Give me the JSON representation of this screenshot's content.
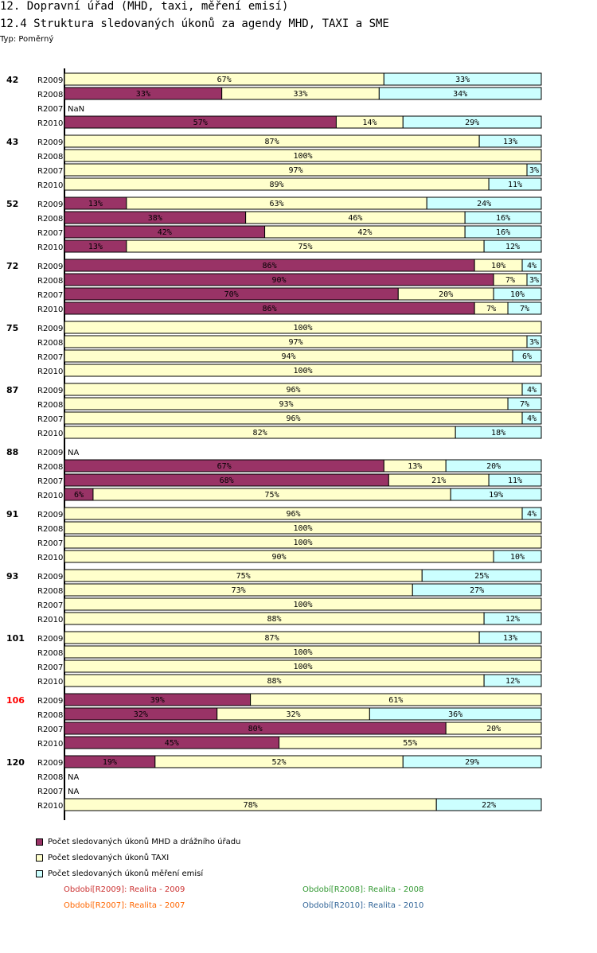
{
  "header": {
    "title": "12. Dopravní úřad (MHD, taxi, měření emisí)",
    "subtitle": "12.4 Struktura sledovaných úkonů za agendy MHD, TAXI a SME",
    "type_label": "Typ: Poměrný"
  },
  "colors": {
    "mhd": "#993366",
    "taxi": "#ffffcc",
    "sme": "#ccffff",
    "highlight_group": "#ff0000"
  },
  "legend": {
    "items": [
      {
        "label": "Počet sledovaných úkonů MHD a drážního úřadu",
        "color": "#993366"
      },
      {
        "label": "Počet sledovaných úkonů TAXI",
        "color": "#ffffcc"
      },
      {
        "label": "Počet sledovaných úkonů měření emisí",
        "color": "#ccffff"
      }
    ]
  },
  "periods": [
    {
      "text": "Období[R2009]: Realita - 2009",
      "color": "#cc3333"
    },
    {
      "text": "Období[R2008]: Realita - 2008",
      "color": "#339933"
    },
    {
      "text": "Období[R2007]: Realita - 2007",
      "color": "#ff6600"
    },
    {
      "text": "Období[R2010]: Realita - 2010",
      "color": "#336699"
    }
  ],
  "chart_data": {
    "type": "bar",
    "orientation": "horizontal",
    "stacked": "percent",
    "series_names": [
      "Počet sledovaných úkonů MHD a drážního úřadu",
      "Počet sledovaných úkonů TAXI",
      "Počet sledovaných úkonů měření emisí"
    ],
    "groups": [
      {
        "name": "42",
        "highlight": false,
        "rows": [
          {
            "label": "R2009",
            "values": [
              0,
              67,
              33
            ]
          },
          {
            "label": "R2008",
            "values": [
              33,
              33,
              34
            ]
          },
          {
            "label": "R2007",
            "note": "NaN"
          },
          {
            "label": "R2010",
            "values": [
              57,
              14,
              29
            ]
          }
        ]
      },
      {
        "name": "43",
        "highlight": false,
        "rows": [
          {
            "label": "R2009",
            "values": [
              0,
              87,
              13
            ]
          },
          {
            "label": "R2008",
            "values": [
              0,
              100,
              0
            ]
          },
          {
            "label": "R2007",
            "values": [
              0,
              97,
              3
            ]
          },
          {
            "label": "R2010",
            "values": [
              0,
              89,
              11
            ]
          }
        ]
      },
      {
        "name": "52",
        "highlight": false,
        "rows": [
          {
            "label": "R2009",
            "values": [
              13,
              63,
              24
            ]
          },
          {
            "label": "R2008",
            "values": [
              38,
              46,
              16
            ]
          },
          {
            "label": "R2007",
            "values": [
              42,
              42,
              16
            ]
          },
          {
            "label": "R2010",
            "values": [
              13,
              75,
              12
            ]
          }
        ]
      },
      {
        "name": "72",
        "highlight": false,
        "rows": [
          {
            "label": "R2009",
            "values": [
              86,
              10,
              4
            ]
          },
          {
            "label": "R2008",
            "values": [
              90,
              7,
              3
            ]
          },
          {
            "label": "R2007",
            "values": [
              70,
              20,
              10
            ]
          },
          {
            "label": "R2010",
            "values": [
              86,
              7,
              7
            ]
          }
        ]
      },
      {
        "name": "75",
        "highlight": false,
        "rows": [
          {
            "label": "R2009",
            "values": [
              0,
              100,
              0
            ]
          },
          {
            "label": "R2008",
            "values": [
              0,
              97,
              3
            ]
          },
          {
            "label": "R2007",
            "values": [
              0,
              94,
              6
            ]
          },
          {
            "label": "R2010",
            "values": [
              0,
              100,
              0
            ]
          }
        ]
      },
      {
        "name": "87",
        "highlight": false,
        "rows": [
          {
            "label": "R2009",
            "values": [
              0,
              96,
              4
            ]
          },
          {
            "label": "R2008",
            "values": [
              0,
              93,
              7
            ]
          },
          {
            "label": "R2007",
            "values": [
              0,
              96,
              4
            ]
          },
          {
            "label": "R2010",
            "values": [
              0,
              82,
              18
            ]
          }
        ]
      },
      {
        "name": "88",
        "highlight": false,
        "rows": [
          {
            "label": "R2009",
            "note": "NA"
          },
          {
            "label": "R2008",
            "values": [
              67,
              13,
              20
            ]
          },
          {
            "label": "R2007",
            "values": [
              68,
              21,
              11
            ]
          },
          {
            "label": "R2010",
            "values": [
              6,
              75,
              19
            ]
          }
        ]
      },
      {
        "name": "91",
        "highlight": false,
        "rows": [
          {
            "label": "R2009",
            "values": [
              0,
              96,
              4
            ]
          },
          {
            "label": "R2008",
            "values": [
              0,
              100,
              0
            ]
          },
          {
            "label": "R2007",
            "values": [
              0,
              100,
              0
            ]
          },
          {
            "label": "R2010",
            "values": [
              0,
              90,
              10
            ]
          }
        ]
      },
      {
        "name": "93",
        "highlight": false,
        "rows": [
          {
            "label": "R2009",
            "values": [
              0,
              75,
              25
            ]
          },
          {
            "label": "R2008",
            "values": [
              0,
              73,
              27
            ]
          },
          {
            "label": "R2007",
            "values": [
              0,
              100,
              0
            ]
          },
          {
            "label": "R2010",
            "values": [
              0,
              88,
              12
            ]
          }
        ]
      },
      {
        "name": "101",
        "highlight": false,
        "rows": [
          {
            "label": "R2009",
            "values": [
              0,
              87,
              13
            ]
          },
          {
            "label": "R2008",
            "values": [
              0,
              100,
              0
            ]
          },
          {
            "label": "R2007",
            "values": [
              0,
              100,
              0
            ]
          },
          {
            "label": "R2010",
            "values": [
              0,
              88,
              12
            ]
          }
        ]
      },
      {
        "name": "106",
        "highlight": true,
        "rows": [
          {
            "label": "R2009",
            "values": [
              39,
              61,
              0
            ]
          },
          {
            "label": "R2008",
            "values": [
              32,
              32,
              36
            ]
          },
          {
            "label": "R2007",
            "values": [
              80,
              20,
              0
            ]
          },
          {
            "label": "R2010",
            "values": [
              45,
              55,
              0
            ]
          }
        ]
      },
      {
        "name": "120",
        "highlight": false,
        "rows": [
          {
            "label": "R2009",
            "values": [
              19,
              52,
              29
            ]
          },
          {
            "label": "R2008",
            "note": "NA"
          },
          {
            "label": "R2007",
            "note": "NA"
          },
          {
            "label": "R2010",
            "values": [
              0,
              78,
              22
            ]
          }
        ]
      }
    ],
    "value_suffix": "%",
    "xlim": [
      0,
      100
    ]
  }
}
